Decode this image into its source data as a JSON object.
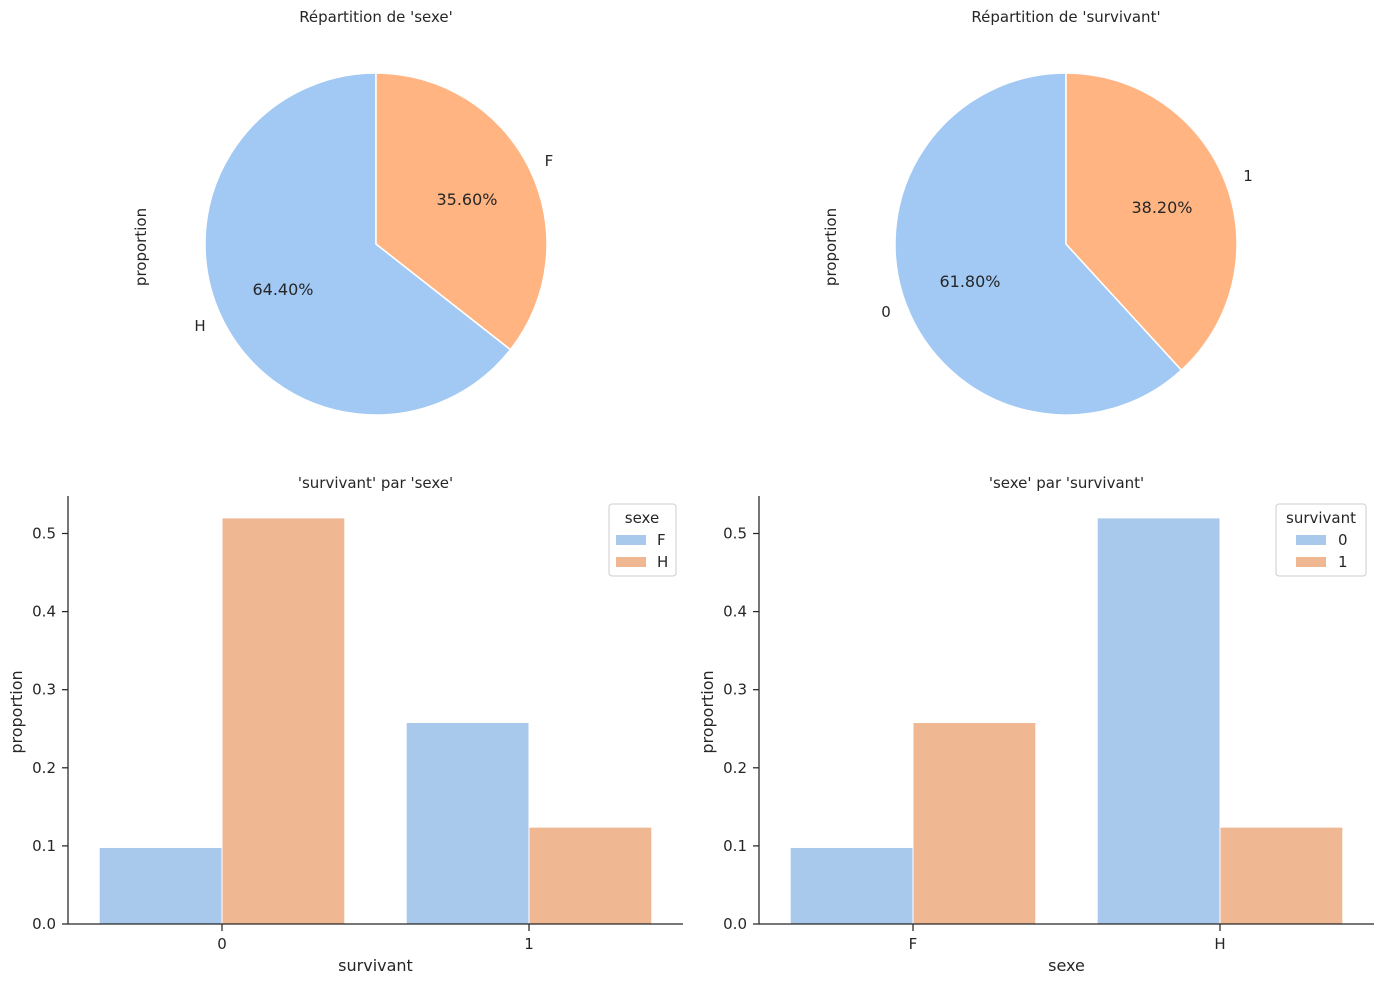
{
  "chart_data": [
    {
      "type": "pie",
      "title": "Répartition de 'sexe'",
      "ylabel": "proportion",
      "labels": [
        "H",
        "F"
      ],
      "values": [
        0.644,
        0.356
      ],
      "pct_labels": [
        "64.40%",
        "35.60%"
      ],
      "colors": [
        "#a1c9f4",
        "#ffb482"
      ]
    },
    {
      "type": "pie",
      "title": "Répartition de 'survivant'",
      "ylabel": "proportion",
      "labels": [
        "0",
        "1"
      ],
      "values": [
        0.618,
        0.382
      ],
      "pct_labels": [
        "61.80%",
        "38.20%"
      ],
      "colors": [
        "#a1c9f4",
        "#ffb482"
      ]
    },
    {
      "type": "bar",
      "title": "'survivant' par 'sexe'",
      "xlabel": "survivant",
      "ylabel": "proportion",
      "categories": [
        "0",
        "1"
      ],
      "ylim": [
        0,
        0.55
      ],
      "yticks": [
        "0.0",
        "0.1",
        "0.2",
        "0.3",
        "0.4",
        "0.5"
      ],
      "legend_title": "sexe",
      "legend_position": "top-right",
      "series": [
        {
          "name": "F",
          "values": [
            0.098,
            0.258
          ],
          "color": "#a1c9f4"
        },
        {
          "name": "H",
          "values": [
            0.52,
            0.124
          ],
          "color": "#ffb482"
        }
      ]
    },
    {
      "type": "bar",
      "title": "'sexe' par 'survivant'",
      "xlabel": "sexe",
      "ylabel": "proportion",
      "categories": [
        "F",
        "H"
      ],
      "ylim": [
        0,
        0.55
      ],
      "yticks": [
        "0.0",
        "0.1",
        "0.2",
        "0.3",
        "0.4",
        "0.5"
      ],
      "legend_title": "survivant",
      "legend_position": "top-right",
      "series": [
        {
          "name": "0",
          "values": [
            0.098,
            0.52
          ],
          "color": "#a1c9f4"
        },
        {
          "name": "1",
          "values": [
            0.258,
            0.124
          ],
          "color": "#ffb482"
        }
      ]
    }
  ]
}
